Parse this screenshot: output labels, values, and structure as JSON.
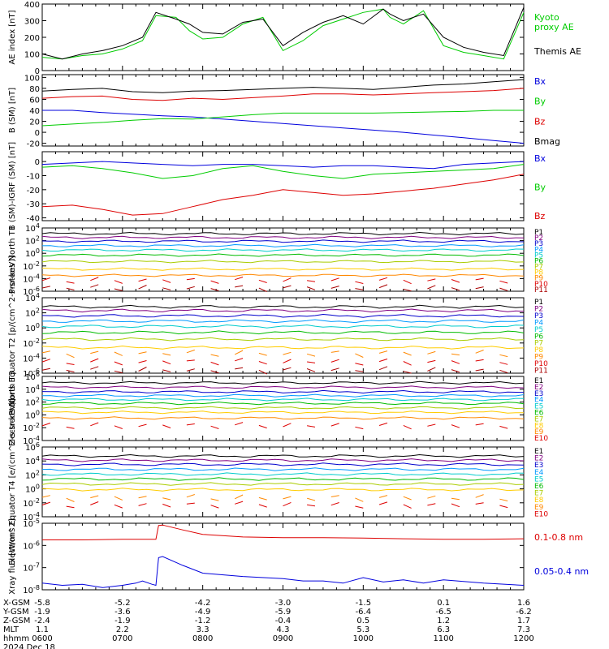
{
  "chart_data": [
    {
      "type": "line",
      "panel": "ae",
      "ylabel": "AE index [nT]",
      "ylim": [
        0,
        400
      ],
      "yticks": [
        "0",
        "100",
        "200",
        "300",
        "400"
      ],
      "series": [
        {
          "name": "Kyoto proxy AE",
          "color": "#00cc00",
          "x": [
            "0600",
            "0615",
            "0630",
            "0645",
            "0700",
            "0715",
            "0725",
            "0740",
            "0750",
            "0800",
            "0815",
            "0830",
            "0845",
            "0900",
            "0915",
            "0930",
            "0945",
            "1000",
            "1015",
            "1020",
            "1030",
            "1045",
            "1100",
            "1115",
            "1130",
            "1145",
            "1200"
          ],
          "values": [
            80,
            70,
            90,
            100,
            130,
            180,
            330,
            320,
            240,
            190,
            200,
            280,
            320,
            120,
            180,
            270,
            310,
            350,
            370,
            320,
            280,
            360,
            150,
            110,
            90,
            70,
            350
          ]
        },
        {
          "name": "Themis AE",
          "color": "#000000",
          "x": [
            "0600",
            "0615",
            "0630",
            "0645",
            "0700",
            "0715",
            "0725",
            "0740",
            "0750",
            "0800",
            "0815",
            "0830",
            "0845",
            "0900",
            "0915",
            "0930",
            "0945",
            "1000",
            "1015",
            "1020",
            "1030",
            "1045",
            "1100",
            "1115",
            "1130",
            "1145",
            "1200"
          ],
          "values": [
            100,
            70,
            100,
            120,
            150,
            200,
            350,
            310,
            280,
            230,
            220,
            290,
            310,
            150,
            230,
            290,
            330,
            280,
            370,
            340,
            300,
            340,
            200,
            140,
            110,
            90,
            380
          ]
        }
      ]
    },
    {
      "type": "line",
      "panel": "bsm",
      "ylabel": "B (SM) [nT]",
      "ylim": [
        -25,
        105
      ],
      "yticks": [
        "-20",
        "0",
        "20",
        "40",
        "60",
        "80",
        "100"
      ],
      "series": [
        {
          "name": "Bx",
          "color": "#0000dd",
          "values": [
            40,
            40,
            36,
            33,
            30,
            28,
            24,
            20,
            16,
            12,
            8,
            4,
            0,
            -5,
            -10,
            -15,
            -20
          ]
        },
        {
          "name": "By",
          "color": "#00cc00",
          "values": [
            12,
            15,
            18,
            22,
            25,
            24,
            28,
            32,
            35,
            35,
            35,
            35,
            36,
            37,
            38,
            40,
            40
          ]
        },
        {
          "name": "Bz",
          "color": "#dd0000",
          "values": [
            62,
            65,
            66,
            60,
            58,
            62,
            60,
            63,
            66,
            70,
            70,
            68,
            70,
            72,
            74,
            76,
            80
          ]
        },
        {
          "name": "Bmag",
          "color": "#000000",
          "values": [
            75,
            78,
            80,
            74,
            72,
            75,
            76,
            78,
            80,
            82,
            80,
            78,
            82,
            86,
            88,
            92,
            96
          ]
        }
      ]
    },
    {
      "type": "line",
      "panel": "bdiff",
      "ylabel": "B (SM)-IGRF (SM) [nT]",
      "ylim": [
        -42,
        7
      ],
      "yticks": [
        "-40",
        "-30",
        "-20",
        "-10",
        "0"
      ],
      "series": [
        {
          "name": "Bx",
          "color": "#0000dd",
          "values": [
            -2,
            -1,
            0,
            -1,
            -2,
            -3,
            -2,
            -2,
            -3,
            -4,
            -3,
            -3,
            -4,
            -5,
            -2,
            -1,
            0
          ]
        },
        {
          "name": "By",
          "color": "#00cc00",
          "values": [
            -4,
            -3,
            -5,
            -8,
            -12,
            -10,
            -5,
            -3,
            -7,
            -10,
            -12,
            -9,
            -8,
            -7,
            -6,
            -5,
            -2
          ]
        },
        {
          "name": "Bz",
          "color": "#dd0000",
          "values": [
            -32,
            -31,
            -34,
            -38,
            -37,
            -32,
            -27,
            -24,
            -20,
            -22,
            -24,
            -23,
            -21,
            -19,
            -16,
            -13,
            -9
          ]
        }
      ]
    },
    {
      "type": "line",
      "panel": "pn",
      "ylabel": "Protons North T1",
      "yscale": "log",
      "ylim": [
        -6,
        4
      ],
      "yticks": [
        "10^-6",
        "10^-4",
        "10^-2",
        "10^0",
        "10^2",
        "10^4"
      ],
      "series": [
        {
          "name": "P1",
          "color": "#000000",
          "log10": 3.1
        },
        {
          "name": "P2",
          "color": "#800080",
          "log10": 2.5
        },
        {
          "name": "P3",
          "color": "#0000cc",
          "log10": 1.9
        },
        {
          "name": "P4",
          "color": "#0099ff",
          "log10": 1.2
        },
        {
          "name": "P5",
          "color": "#00cccc",
          "log10": 0.5
        },
        {
          "name": "P6",
          "color": "#00bb00",
          "log10": -0.3
        },
        {
          "name": "P7",
          "color": "#aacc00",
          "log10": -1.3
        },
        {
          "name": "P8",
          "color": "#ffcc00",
          "log10": -2.5
        },
        {
          "name": "P9",
          "color": "#ff8800",
          "log10": -3.5
        },
        {
          "name": "P10",
          "color": "#dd0000",
          "log10": -4.3,
          "gapped": true
        },
        {
          "name": "P11",
          "color": "#aa0000",
          "log10": -5.5,
          "gapped": true
        }
      ]
    },
    {
      "type": "line",
      "panel": "pe",
      "ylabel": "Protons Equator T2 [p/(cm^2-s-sr-keV)]",
      "yscale": "log",
      "ylim": [
        -6,
        4
      ],
      "yticks": [
        "10^-6",
        "10^-4",
        "10^-2",
        "10^0",
        "10^2",
        "10^4"
      ],
      "series": [
        {
          "name": "P1",
          "color": "#000000",
          "log10": 2.8
        },
        {
          "name": "P2",
          "color": "#800080",
          "log10": 2.3
        },
        {
          "name": "P3",
          "color": "#0000cc",
          "log10": 1.6
        },
        {
          "name": "P4",
          "color": "#0099ff",
          "log10": 0.9
        },
        {
          "name": "P5",
          "color": "#00cccc",
          "log10": 0.2
        },
        {
          "name": "P6",
          "color": "#00bb00",
          "log10": -0.6
        },
        {
          "name": "P7",
          "color": "#aacc00",
          "log10": -1.5
        },
        {
          "name": "P8",
          "color": "#ffcc00",
          "log10": -2.6
        },
        {
          "name": "P9",
          "color": "#ff8800",
          "log10": -3.4,
          "gapped": true
        },
        {
          "name": "P10",
          "color": "#dd0000",
          "log10": -4.5,
          "gapped": true
        },
        {
          "name": "P11",
          "color": "#aa0000",
          "log10": -5.6,
          "gapped": true
        }
      ]
    },
    {
      "type": "line",
      "panel": "en",
      "ylabel": "Electrons North T3",
      "yscale": "log",
      "ylim": [
        -4,
        6
      ],
      "yticks": [
        "10^-4",
        "10^-2",
        "10^0",
        "10^2",
        "10^4",
        "10^6"
      ],
      "series": [
        {
          "name": "E1",
          "color": "#000000",
          "log10": 5.0
        },
        {
          "name": "E2",
          "color": "#800080",
          "log10": 4.3
        },
        {
          "name": "E3",
          "color": "#0000cc",
          "log10": 3.6
        },
        {
          "name": "E4",
          "color": "#0099ff",
          "log10": 3.0
        },
        {
          "name": "E5",
          "color": "#00cccc",
          "log10": 2.4
        },
        {
          "name": "E6",
          "color": "#00bb00",
          "log10": 1.8
        },
        {
          "name": "E7",
          "color": "#aacc00",
          "log10": 1.1
        },
        {
          "name": "E8",
          "color": "#ffcc00",
          "log10": 0.4
        },
        {
          "name": "E9",
          "color": "#ff8800",
          "log10": -0.5
        },
        {
          "name": "E10",
          "color": "#dd0000",
          "log10": -1.7,
          "gapped": true
        }
      ]
    },
    {
      "type": "line",
      "panel": "ee",
      "ylabel": "Electrons Equator T4 [e/(cm^2-s-sr-keV)]",
      "yscale": "log",
      "ylim": [
        -4,
        6
      ],
      "yticks": [
        "10^-4",
        "10^-2",
        "10^0",
        "10^2",
        "10^4",
        "10^6"
      ],
      "series": [
        {
          "name": "E1",
          "color": "#000000",
          "log10": 4.7
        },
        {
          "name": "E2",
          "color": "#800080",
          "log10": 4.1
        },
        {
          "name": "E3",
          "color": "#0000cc",
          "log10": 3.5
        },
        {
          "name": "E4",
          "color": "#0099ff",
          "log10": 2.8
        },
        {
          "name": "E5",
          "color": "#00cccc",
          "log10": 2.1
        },
        {
          "name": "E6",
          "color": "#00bb00",
          "log10": 1.4
        },
        {
          "name": "E7",
          "color": "#aacc00",
          "log10": 0.7
        },
        {
          "name": "E8",
          "color": "#ffcc00",
          "log10": -0.1
        },
        {
          "name": "E9",
          "color": "#ff8800",
          "log10": -1.3,
          "gapped": true
        },
        {
          "name": "E10",
          "color": "#dd0000",
          "log10": -2.3,
          "gapped": true
        }
      ]
    },
    {
      "type": "line",
      "panel": "xray",
      "ylabel": "Xray flux [W/m^2]",
      "yscale": "log",
      "ylim": [
        -8,
        -5
      ],
      "yticks": [
        "10^-8",
        "10^-7",
        "10^-6",
        "10^-5"
      ],
      "series": [
        {
          "name": "0.1-0.8 nm",
          "color": "#dd0000",
          "x": [
            "0600",
            "0630",
            "0700",
            "0715",
            "0725",
            "0727",
            "0730",
            "0745",
            "0800",
            "0830",
            "0900",
            "0930",
            "1000",
            "1030",
            "1100",
            "1130",
            "1200"
          ],
          "values_log10": [
            -5.75,
            -5.75,
            -5.72,
            -5.72,
            -5.72,
            -5.1,
            -5.08,
            -5.3,
            -5.5,
            -5.62,
            -5.65,
            -5.65,
            -5.67,
            -5.7,
            -5.72,
            -5.72,
            -5.7
          ]
        },
        {
          "name": "0.05-0.4 nm",
          "color": "#0000dd",
          "x": [
            "0600",
            "0615",
            "0630",
            "0645",
            "0700",
            "0710",
            "0715",
            "0722",
            "0725",
            "0727",
            "0730",
            "0745",
            "0800",
            "0830",
            "0900",
            "0915",
            "0930",
            "0945",
            "1000",
            "1015",
            "1030",
            "1045",
            "1100",
            "1130",
            "1200"
          ],
          "values_log10": [
            -7.7,
            -7.8,
            -7.75,
            -7.9,
            -7.8,
            -7.7,
            -7.6,
            -7.75,
            -7.8,
            -6.55,
            -6.5,
            -6.9,
            -7.25,
            -7.4,
            -7.5,
            -7.6,
            -7.6,
            -7.7,
            -7.45,
            -7.65,
            -7.55,
            -7.7,
            -7.55,
            -7.7,
            -7.8
          ]
        }
      ]
    }
  ],
  "xaxis": {
    "rows": [
      {
        "label": "X-GSM",
        "values": [
          "-5.8",
          "-5.2",
          "-4.2",
          "-3.0",
          "-1.5",
          "0.1",
          "1.6"
        ]
      },
      {
        "label": "Y-GSM",
        "values": [
          "-1.9",
          "-3.6",
          "-4.9",
          "-5.9",
          "-6.4",
          "-6.5",
          "-6.2"
        ]
      },
      {
        "label": "Z-GSM",
        "values": [
          "-2.4",
          "-1.9",
          "-1.2",
          "-0.4",
          "0.5",
          "1.2",
          "1.7"
        ]
      },
      {
        "label": "MLT",
        "values": [
          "1.1",
          "2.2",
          "3.3",
          "4.3",
          "5.3",
          "6.3",
          "7.3"
        ]
      },
      {
        "label": "hhmm",
        "values": [
          "0600",
          "0700",
          "0800",
          "0900",
          "1000",
          "1100",
          "1200"
        ]
      }
    ],
    "date": "2024 Dec 18"
  }
}
